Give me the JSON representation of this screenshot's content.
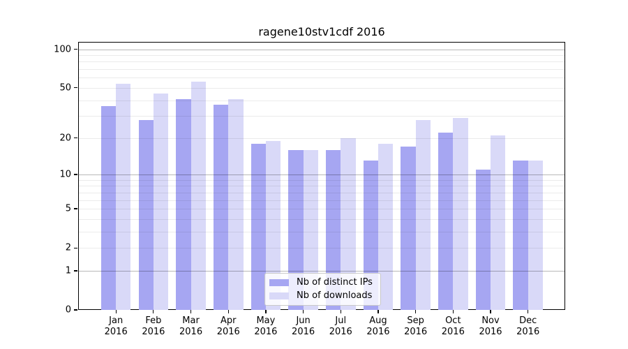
{
  "chart_data": {
    "type": "bar",
    "title": "ragene10stv1cdf 2016",
    "categories": [
      "Jan",
      "Feb",
      "Mar",
      "Apr",
      "May",
      "Jun",
      "Jul",
      "Aug",
      "Sep",
      "Oct",
      "Nov",
      "Dec"
    ],
    "x_sublabel": "2016",
    "series": [
      {
        "name": "Nb of distinct IPs",
        "color": "#a6a6f2",
        "values": [
          36,
          28,
          41,
          37,
          18,
          16,
          16,
          13,
          17,
          22,
          11,
          13
        ]
      },
      {
        "name": "Nb of downloads",
        "color": "#d9d9f8",
        "values": [
          54,
          45,
          56,
          41,
          19,
          16,
          20,
          18,
          28,
          29,
          21,
          13
        ]
      }
    ],
    "yticks": [
      100,
      50,
      20,
      10,
      5,
      2,
      1,
      0
    ],
    "ylim": [
      0,
      110
    ],
    "yscale": "log10(1+x)",
    "grid": {
      "on": true,
      "minor_lines": [
        2,
        3,
        4,
        5,
        6,
        7,
        8,
        9,
        20,
        30,
        40,
        50,
        60,
        70,
        80,
        90
      ],
      "major_lines": [
        1,
        10,
        100
      ],
      "drawn_over_bars": true
    },
    "legend_position": "bottom-center"
  }
}
